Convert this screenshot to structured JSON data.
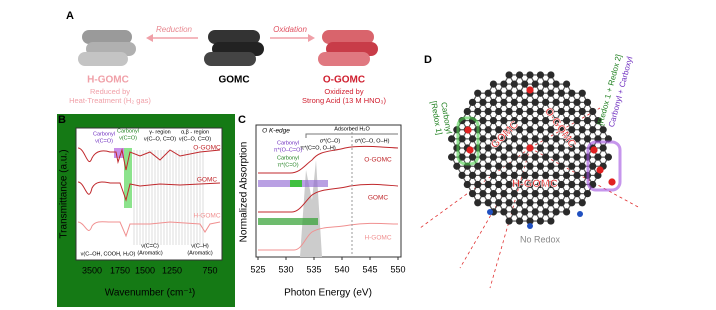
{
  "panel_a": {
    "label": "A",
    "reduction": "Reduction",
    "oxidation": "Oxidation",
    "h_gomc": "H-GOMC",
    "gomc": "GOMC",
    "o_gomc": "O-GOMC",
    "reduced_line1": "Reduced by",
    "reduced_line2": "Heat-Treatment (H₂ gas)",
    "oxidized_line1": "Oxidized by",
    "oxidized_line2": "Strong Acid (13 M HNO₃)"
  },
  "panel_b": {
    "label": "B",
    "y_label": "Transmittance (a.u.)",
    "x_label": "Wavenumber (cm⁻¹)",
    "x_ticks": [
      "3500",
      "1750",
      "1500",
      "1250",
      "750"
    ],
    "carbonyl_1": [
      "Carbonyl",
      "ν(C=O)"
    ],
    "carbonyl_2": [
      "Carbonyl",
      "ν(C=O)"
    ],
    "gamma_region": [
      "γ- region",
      "ν(C–O, C=O)"
    ],
    "alpha_region": [
      "α,β - region",
      "ν(C–O, C=O)"
    ],
    "o_gomc": "O-GOMC",
    "gomc": "GOMC",
    "h_gomc": "H-GOMC",
    "oh_band": "ν(C–OH, COOH, H₂O)",
    "cc_band": [
      "ν(C=C)",
      "(Aromatic)"
    ],
    "ch_band": [
      "ν(C–H)",
      "(Aromatic)"
    ]
  },
  "panel_c": {
    "label": "C",
    "edge": "O K-edge",
    "adsorbed": "Adsorbed H₂O",
    "sigma_co": "σ*(C–O)",
    "pi_co_oh": "π*(C=O, O–H)",
    "sigma_co_oh": "σ*(C–O, O–H)",
    "carbonyl_1": [
      "Carbonyl",
      "π*(O–C=O)"
    ],
    "carbonyl_2": [
      "Carbonyl",
      "π*(C=O)"
    ],
    "o_gomc": "O-GOMC",
    "gomc": "GOMC",
    "h_gomc": "H-GOMC",
    "y_label": "Normalized Absorption",
    "x_label": "Photon Energy (eV)",
    "x_ticks": [
      525,
      530,
      535,
      540,
      545,
      550
    ]
  },
  "panel_d": {
    "label": "D",
    "redox1": [
      "[Redox 1]",
      "Carbonyl"
    ],
    "redox12": [
      "[Redox 1 + Redox 2]",
      "Carbonyl + Carboxyl"
    ],
    "gomc": "GOMC",
    "o_gomc": "O-GOMC",
    "h_gomc": "H-GOMC",
    "no_redox": "No Redox"
  }
}
